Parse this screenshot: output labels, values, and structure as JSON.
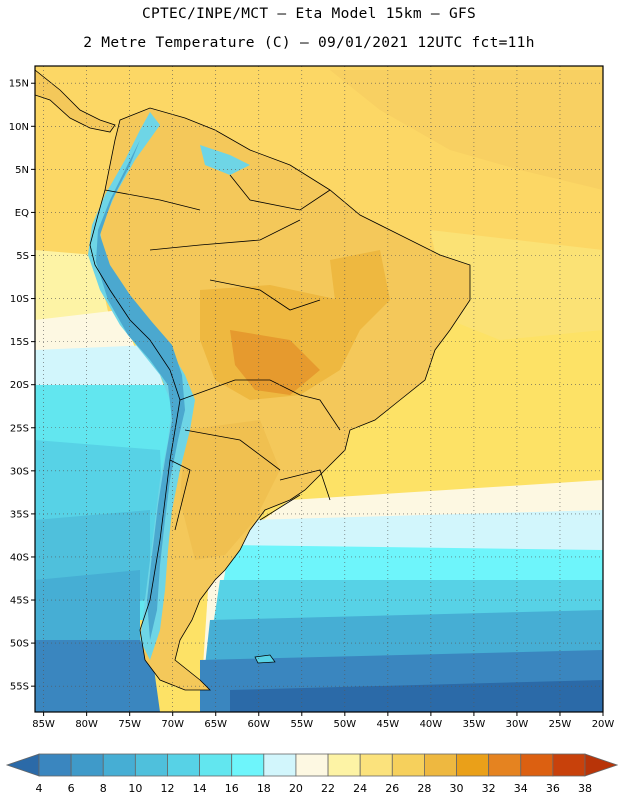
{
  "header": {
    "line1": "CPTEC/INPE/MCT –  Eta Model 15km – GFS",
    "line2": "2 Metre Temperature (C) – 09/01/2021 12UTC fct=11h"
  },
  "map": {
    "lat_labels": [
      "15N",
      "10N",
      "5N",
      "EQ",
      "5S",
      "10S",
      "15S",
      "20S",
      "25S",
      "30S",
      "35S",
      "40S",
      "45S",
      "50S",
      "55S"
    ],
    "lat_values": [
      15,
      10,
      5,
      0,
      -5,
      -10,
      -15,
      -20,
      -25,
      -30,
      -35,
      -40,
      -45,
      -50,
      -55
    ],
    "lon_labels": [
      "85W",
      "80W",
      "75W",
      "70W",
      "65W",
      "60W",
      "55W",
      "50W",
      "45W",
      "40W",
      "35W",
      "30W",
      "25W",
      "20W"
    ],
    "lon_values": [
      -85,
      -80,
      -75,
      -70,
      -65,
      -60,
      -55,
      -50,
      -45,
      -40,
      -35,
      -30,
      -25,
      -20
    ],
    "lat_range": [
      -58,
      17
    ],
    "lon_range": [
      -86,
      -20
    ]
  },
  "colorbar": {
    "labels": [
      "4",
      "6",
      "8",
      "10",
      "12",
      "14",
      "16",
      "18",
      "20",
      "22",
      "24",
      "26",
      "28",
      "30",
      "32",
      "34",
      "36",
      "38"
    ],
    "colors": [
      "#2b6aa8",
      "#3a86bf",
      "#3f9ac9",
      "#46aed4",
      "#4fc0dc",
      "#57d2e6",
      "#62e6ef",
      "#6ef5fb",
      "#d2f6fc",
      "#fdf8e2",
      "#fdf3a5",
      "#fbe27c",
      "#f6d05c",
      "#eeb840",
      "#eaa019",
      "#e58320",
      "#dc6011",
      "#c8410b",
      "#b83408"
    ]
  }
}
